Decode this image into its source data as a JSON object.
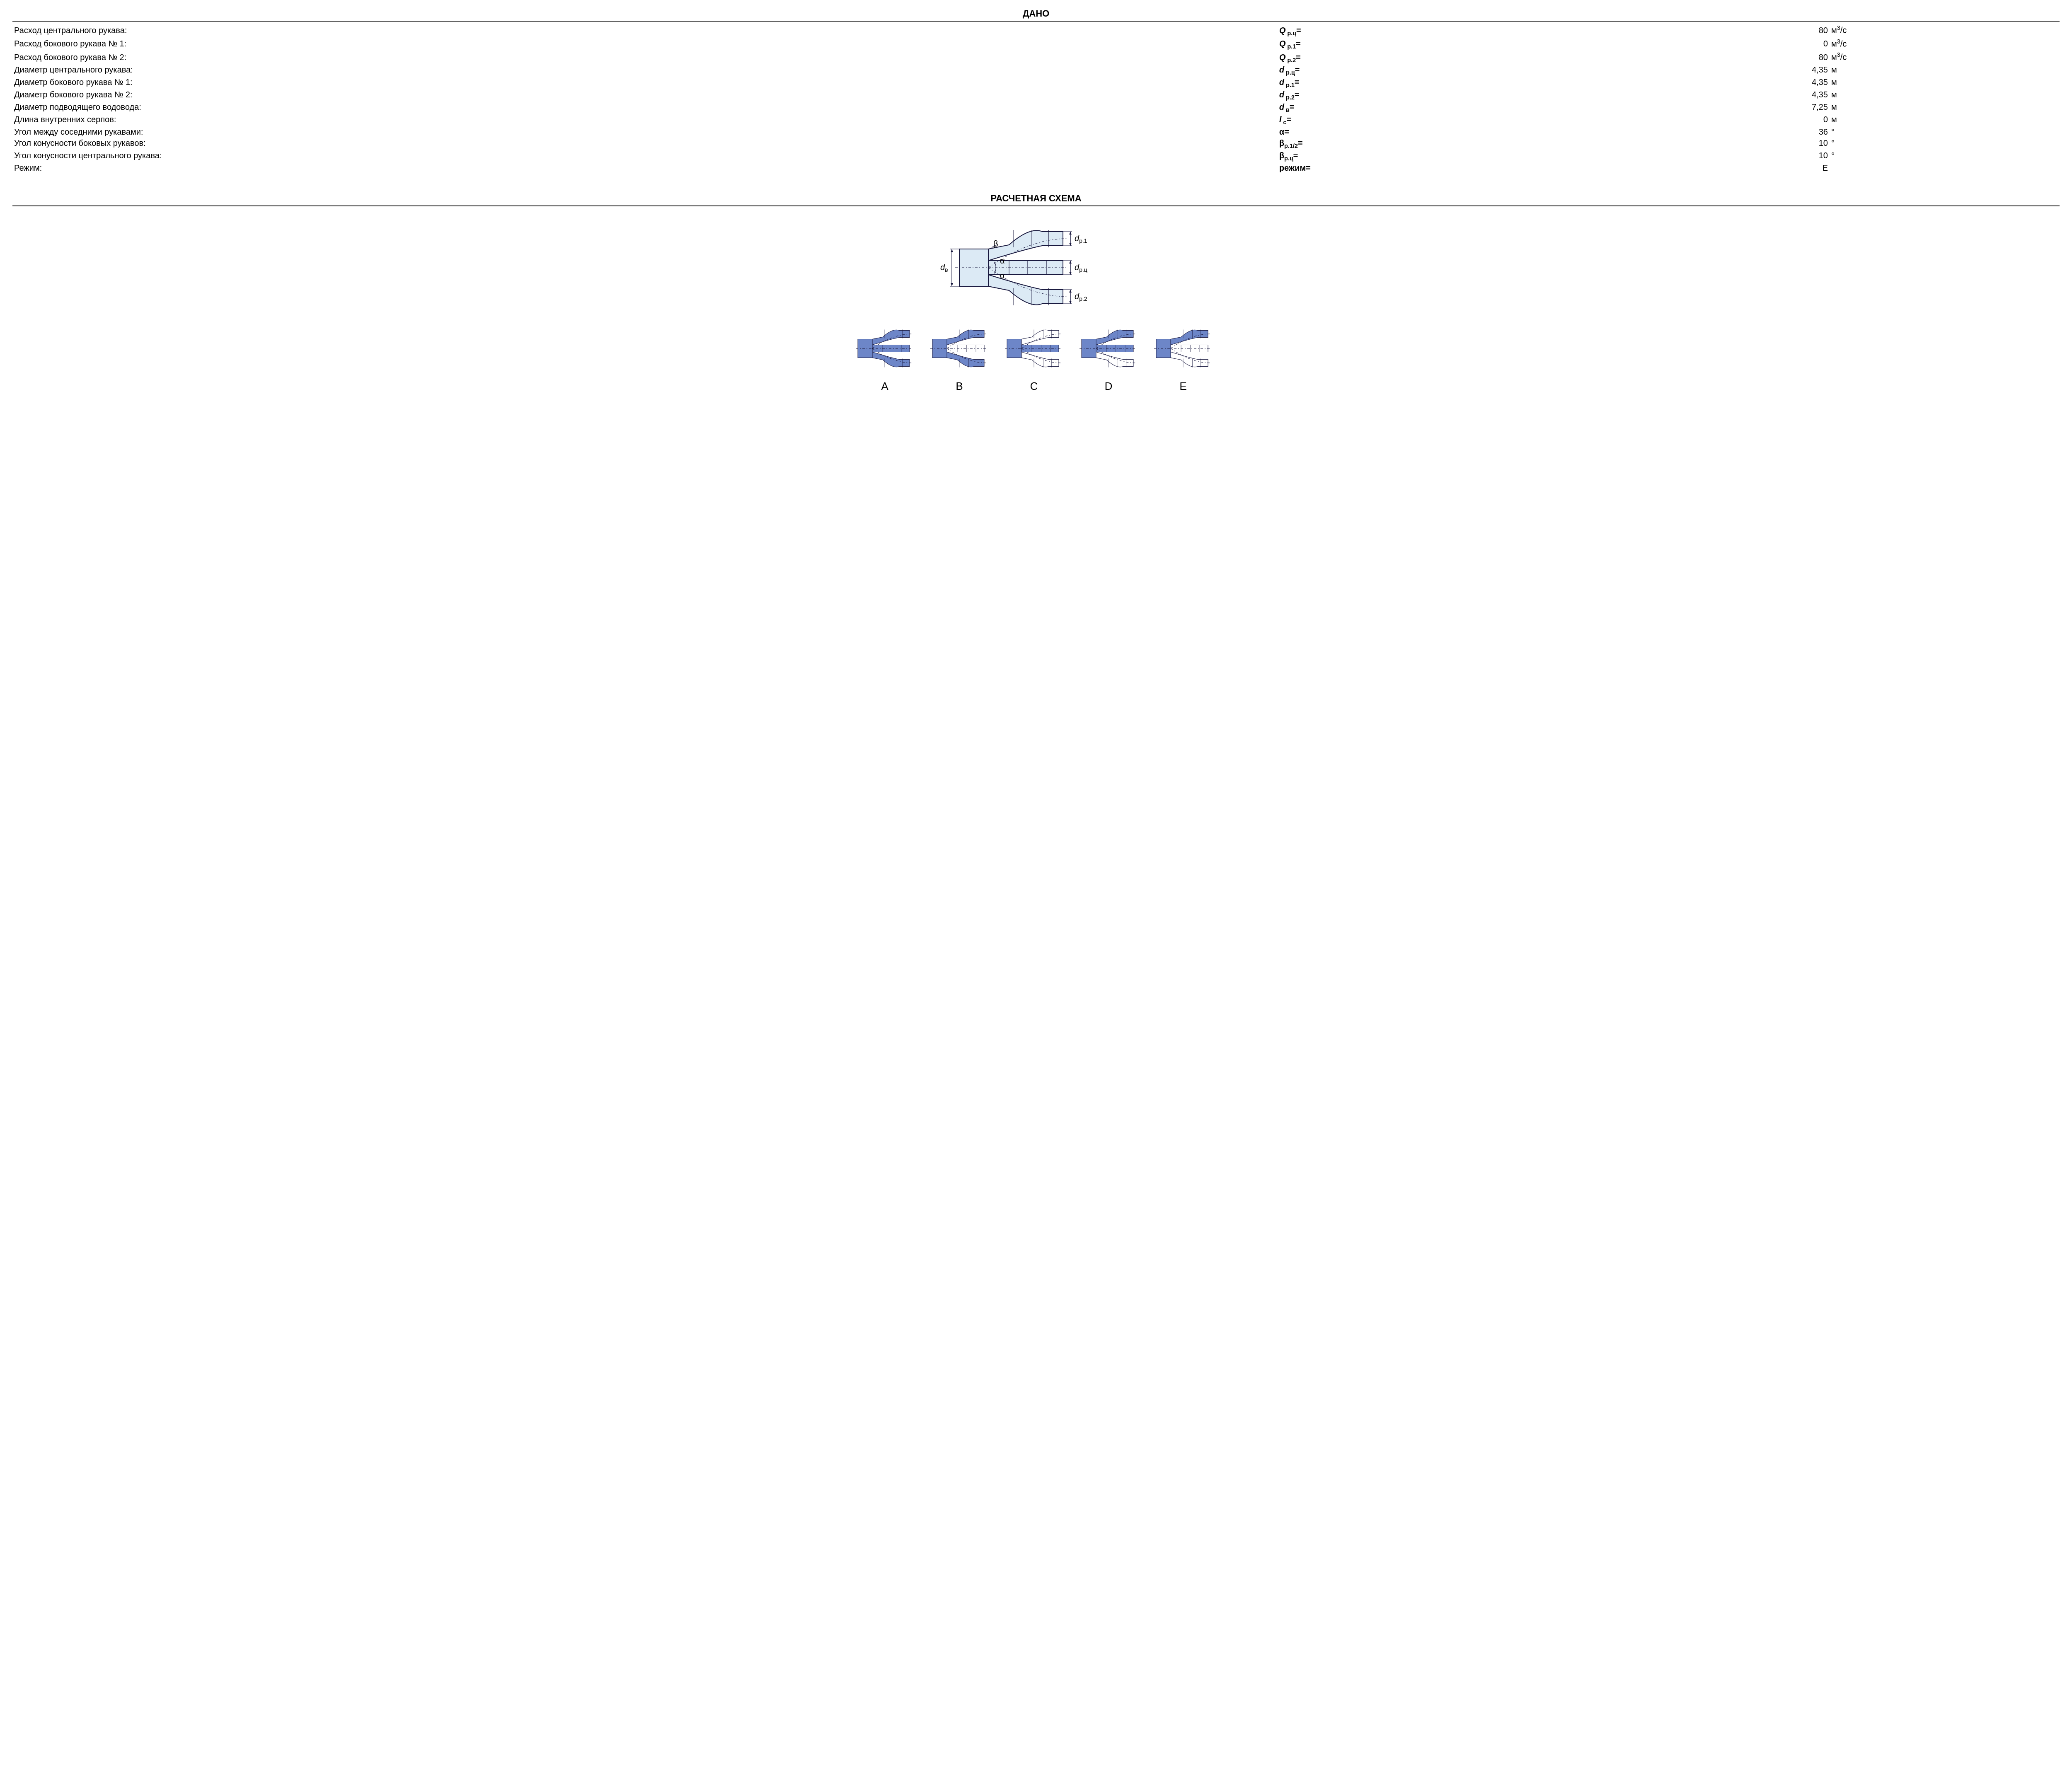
{
  "titles": {
    "given": "ДАНО",
    "scheme": "РАСЧЕТНАЯ СХЕМА"
  },
  "colors": {
    "text": "#000000",
    "line": "#1a1a40",
    "fill_light": "#dceaf5",
    "fill_blue": "#6d86c8",
    "fill_white": "#ffffff",
    "bg": "#ffffff"
  },
  "rows": [
    {
      "desc": "Расход центрального рукава:",
      "sym_html": "<span class='var'>Q</span><sub> р.ц</sub>=",
      "val": "80",
      "unit_html": "м<sup>3</sup>/с"
    },
    {
      "desc": "Расход бокового рукава № 1:",
      "sym_html": "<span class='var'>Q</span><sub> р.1</sub>=",
      "val": "0",
      "unit_html": "м<sup>3</sup>/с"
    },
    {
      "desc": "Расход бокового рукава № 2:",
      "sym_html": "<span class='var'>Q</span><sub> р.2</sub>=",
      "val": "80",
      "unit_html": "м<sup>3</sup>/с"
    },
    {
      "desc": "Диаметр центрального рукава:",
      "sym_html": "<span class='var'>d</span><sub> р.ц</sub>=",
      "val": "4,35",
      "unit_html": "м"
    },
    {
      "desc": "Диаметр бокового рукава № 1:",
      "sym_html": "<span class='var'>d</span><sub> р.1</sub>=",
      "val": "4,35",
      "unit_html": "м"
    },
    {
      "desc": "Диаметр бокового рукава № 2:",
      "sym_html": "<span class='var'>d</span><sub> р.2</sub>=",
      "val": "4,35",
      "unit_html": "м"
    },
    {
      "desc": "Диаметр подводящего водовода:",
      "sym_html": "<span class='var'>d</span><sub> в</sub>=",
      "val": "7,25",
      "unit_html": "м"
    },
    {
      "desc": "Длина внутренних серпов:",
      "sym_html": "<span class='var'>l</span><sub> с</sub>=",
      "val": "0",
      "unit_html": "м"
    },
    {
      "desc": "Угол между соседними рукавами:",
      "sym_html": "<b>α=</b>",
      "val": "36",
      "unit_html": "°"
    },
    {
      "desc": "Угол конусности боковых рукавов:",
      "sym_html": "<b>β</b><sub>р.1/2</sub><b>=</b>",
      "val": "10",
      "unit_html": "°"
    },
    {
      "desc": "Угол конусности центрального рукава:",
      "sym_html": "<b>β</b><sub>р.ц</sub><b>=</b>",
      "val": "10",
      "unit_html": "°"
    },
    {
      "desc": "Режим:",
      "sym_html": "<b>режим=</b>",
      "val": "E",
      "unit_html": ""
    }
  ],
  "diagram": {
    "main_labels": {
      "d_in": "d",
      "d_in_sub": "в",
      "d_top": "d",
      "d_top_sub": "р.1",
      "d_mid": "d",
      "d_mid_sub": "р.ц",
      "d_bot": "d",
      "d_bot_sub": "р.2",
      "alpha": "α",
      "beta": "β"
    },
    "variants": [
      "A",
      "B",
      "C",
      "D",
      "E"
    ],
    "variant_fill": {
      "A": {
        "in": "blue",
        "top": "blue",
        "mid": "blue",
        "bot": "blue"
      },
      "B": {
        "in": "blue",
        "top": "blue",
        "mid": "white",
        "bot": "blue"
      },
      "C": {
        "in": "blue",
        "top": "white",
        "mid": "blue",
        "bot": "white"
      },
      "D": {
        "in": "blue",
        "top": "blue",
        "mid": "blue",
        "bot": "white"
      },
      "E": {
        "in": "blue",
        "top": "blue",
        "mid": "white",
        "bot": "white"
      }
    }
  }
}
